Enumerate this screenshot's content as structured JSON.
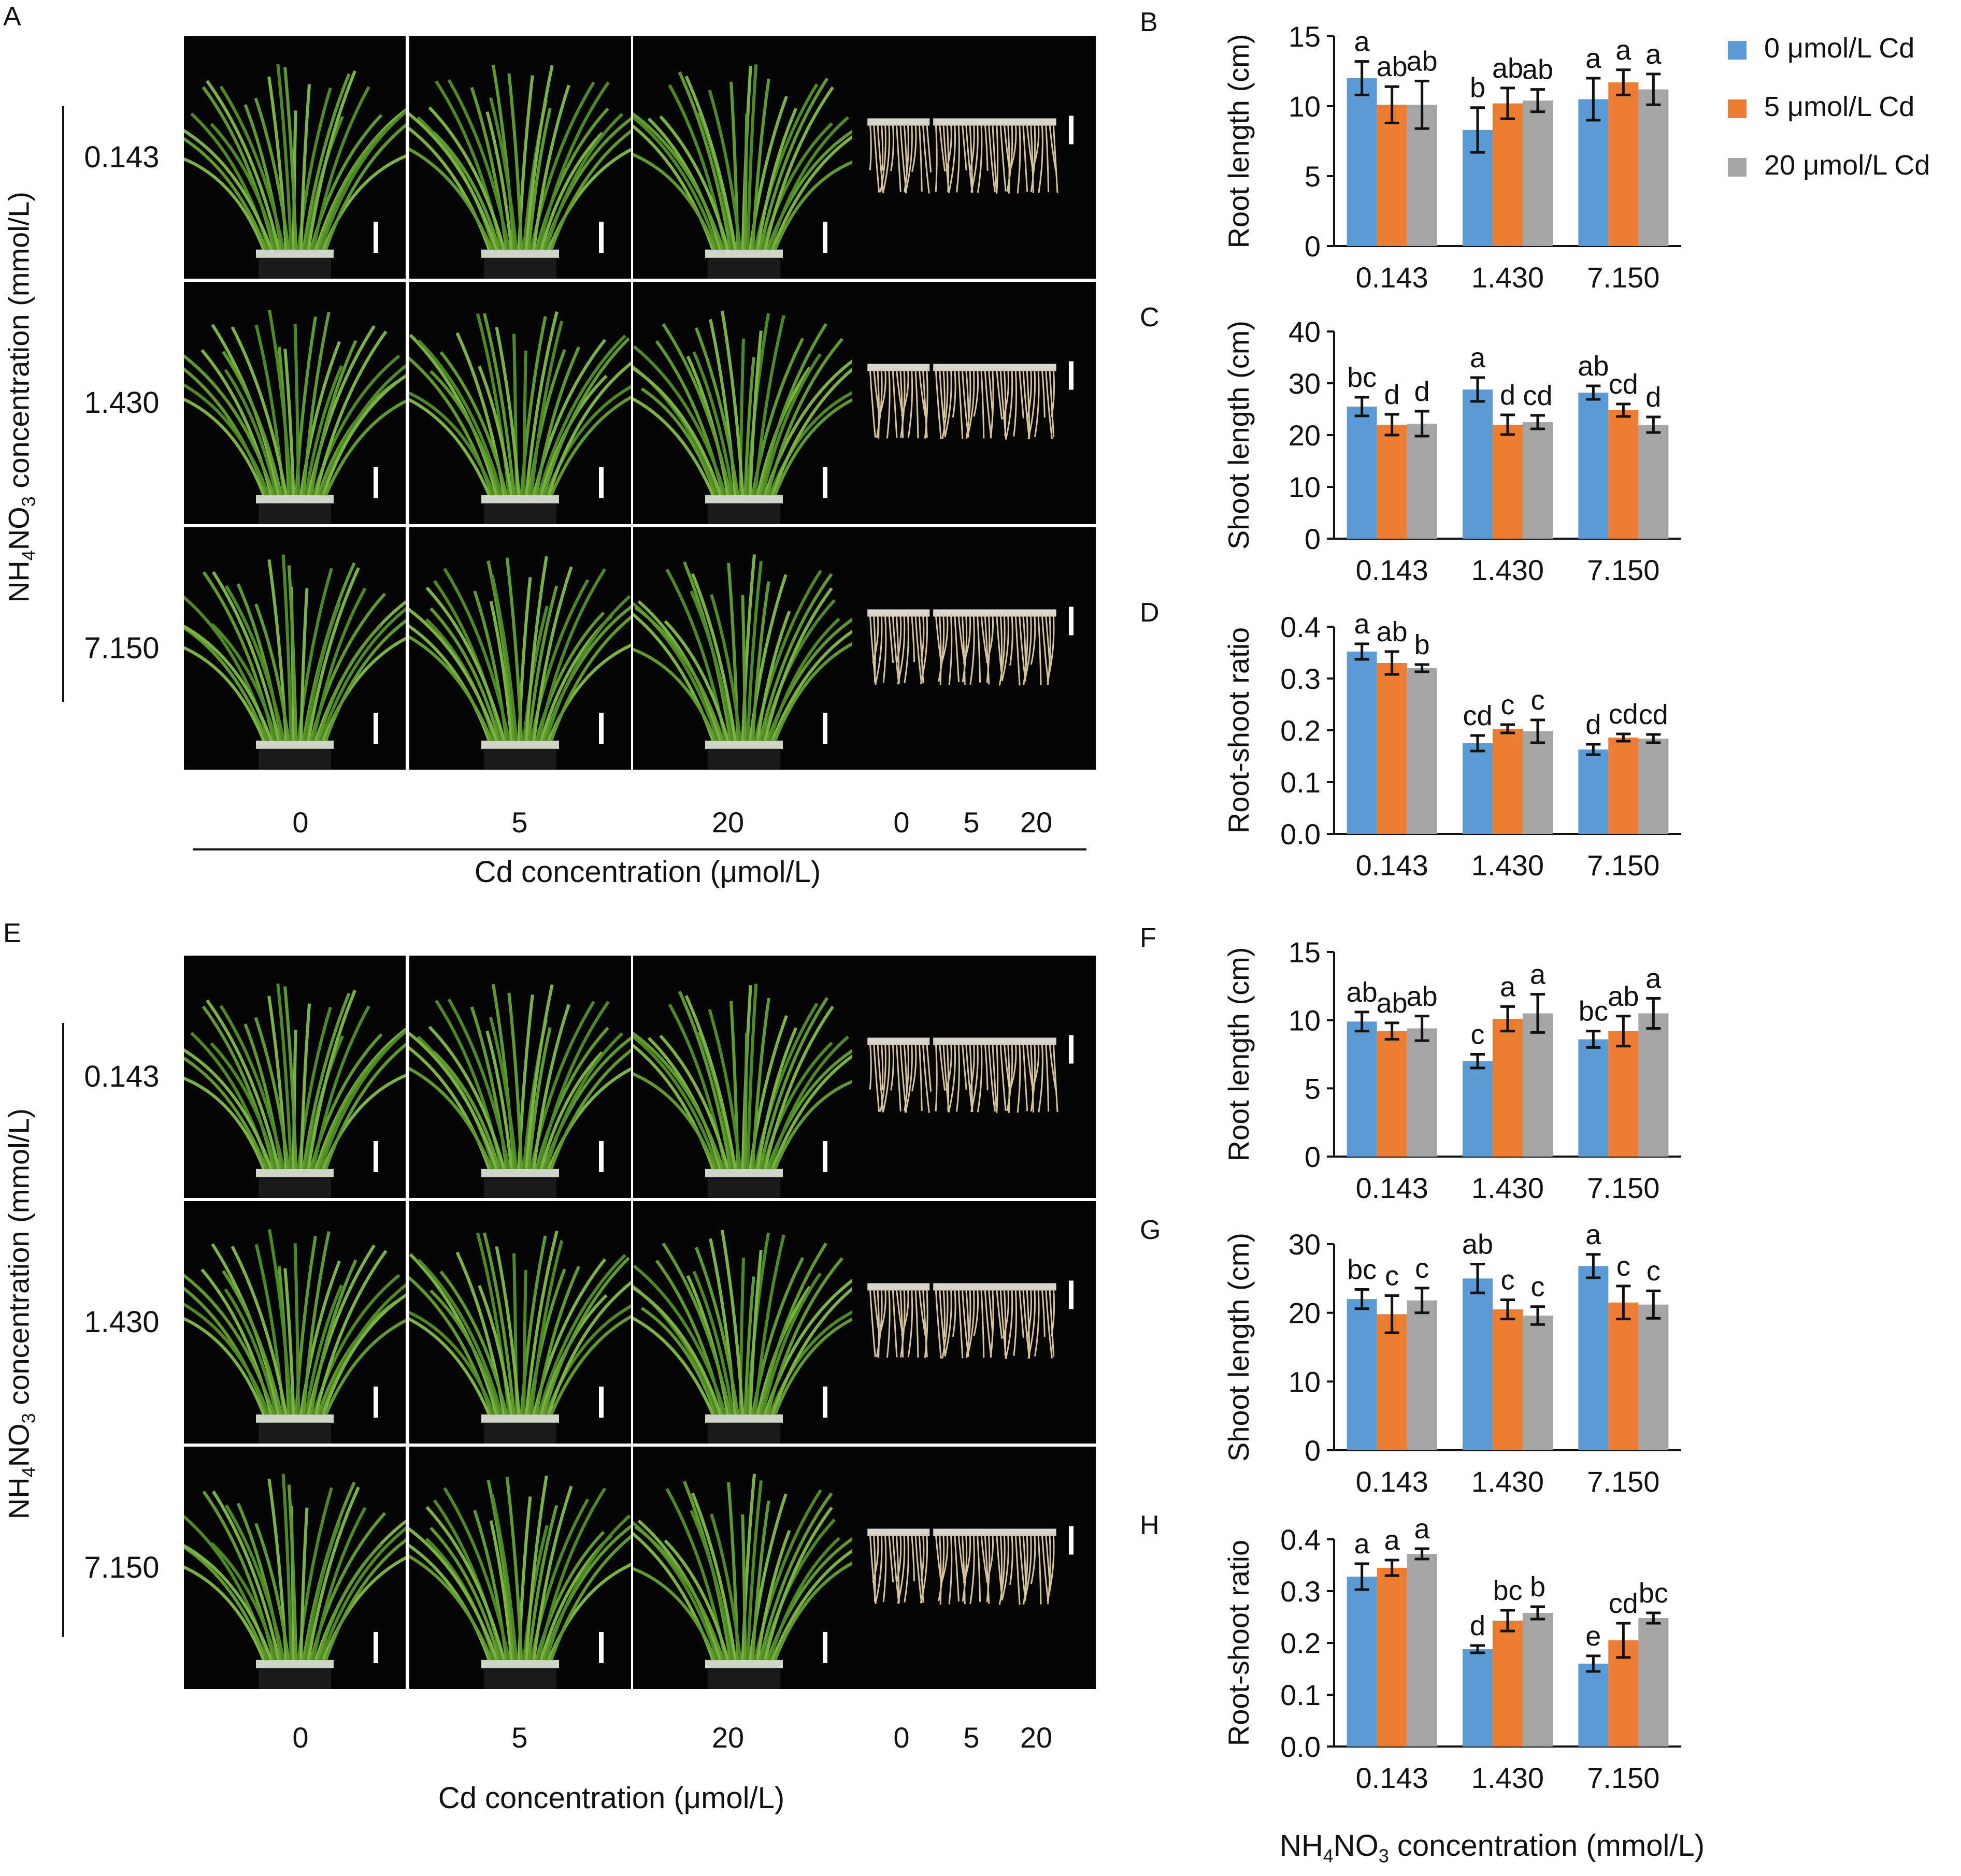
{
  "panel_letters": {
    "A": "A",
    "B": "B",
    "C": "C",
    "D": "D",
    "E": "E",
    "F": "F",
    "G": "G",
    "H": "H"
  },
  "colors": {
    "s0": "#5B9BD5",
    "s5": "#ED7D31",
    "s20": "#A5A5A5",
    "photo_bg": "#050505",
    "shoot": "#5f9a2c",
    "root": "#d8c49a"
  },
  "photo_panels": {
    "row_labels": [
      "0.143",
      "1.430",
      "7.150"
    ],
    "cd_shoot_labels": [
      "0",
      "5",
      "20"
    ],
    "cd_root_labels": [
      "0",
      "5",
      "20"
    ],
    "left_axis_title_main": "NH",
    "left_axis_title_sub4": "4",
    "left_axis_title_mid": "NO",
    "left_axis_title_sub3": "3",
    "left_axis_title_rest": " concentration (mmol/L)",
    "bottom_title": "Cd concentration (μmol/L)"
  },
  "legend": [
    "0 μmol/L Cd",
    "5 μmol/L Cd",
    "20 μmol/L Cd"
  ],
  "bottom_axis_title": {
    "main": "NH",
    "sub4": "4",
    "mid": "NO",
    "sub3": "3",
    "rest": " concentration (mmol/L)"
  },
  "chart_data": [
    {
      "panel": "B",
      "type": "bar",
      "ylabel": "Root length (cm)",
      "ylim": [
        0,
        15
      ],
      "yticks": [
        "0",
        "5",
        "10",
        "15"
      ],
      "categories": [
        "0.143",
        "1.430",
        "7.150"
      ],
      "series": [
        {
          "name": "0 μmol/L Cd",
          "values": [
            12.0,
            8.3,
            10.5
          ],
          "err": [
            1.2,
            1.6,
            1.5
          ],
          "letters": [
            "a",
            "b",
            "a"
          ]
        },
        {
          "name": "5 μmol/L Cd",
          "values": [
            10.1,
            10.2,
            11.7
          ],
          "err": [
            1.3,
            1.1,
            0.9
          ],
          "letters": [
            "ab",
            "ab",
            "a"
          ]
        },
        {
          "name": "20 μmol/L Cd",
          "values": [
            10.1,
            10.4,
            11.2
          ],
          "err": [
            1.7,
            0.8,
            1.1
          ],
          "letters": [
            "ab",
            "ab",
            "a"
          ]
        }
      ]
    },
    {
      "panel": "C",
      "type": "bar",
      "ylabel": "Shoot length (cm)",
      "ylim": [
        0,
        40
      ],
      "yticks": [
        "0",
        "10",
        "20",
        "30",
        "40"
      ],
      "categories": [
        "0.143",
        "1.430",
        "7.150"
      ],
      "series": [
        {
          "name": "0 μmol/L Cd",
          "values": [
            25.5,
            28.8,
            28.2
          ],
          "err": [
            1.8,
            2.3,
            1.3
          ],
          "letters": [
            "bc",
            "a",
            "ab"
          ]
        },
        {
          "name": "5 μmol/L Cd",
          "values": [
            22.0,
            22.0,
            24.8
          ],
          "err": [
            2.0,
            1.9,
            1.2
          ],
          "letters": [
            "d",
            "d",
            "cd"
          ]
        },
        {
          "name": "20 μmol/L Cd",
          "values": [
            22.2,
            22.5,
            22.0
          ],
          "err": [
            2.4,
            1.3,
            1.5
          ],
          "letters": [
            "d",
            "cd",
            "d"
          ]
        }
      ]
    },
    {
      "panel": "D",
      "type": "bar",
      "ylabel": "Root-shoot ratio",
      "ylim": [
        0,
        0.4
      ],
      "yticks": [
        "0.0",
        "0.1",
        "0.2",
        "0.3",
        "0.4"
      ],
      "categories": [
        "0.143",
        "1.430",
        "7.150"
      ],
      "series": [
        {
          "name": "0 μmol/L Cd",
          "values": [
            0.352,
            0.175,
            0.163
          ],
          "err": [
            0.015,
            0.015,
            0.01
          ],
          "letters": [
            "a",
            "cd",
            "d"
          ]
        },
        {
          "name": "5 μmol/L Cd",
          "values": [
            0.33,
            0.203,
            0.186
          ],
          "err": [
            0.022,
            0.008,
            0.007
          ],
          "letters": [
            "ab",
            "c",
            "cd"
          ]
        },
        {
          "name": "20 μmol/L Cd",
          "values": [
            0.32,
            0.198,
            0.184
          ],
          "err": [
            0.007,
            0.022,
            0.008
          ],
          "letters": [
            "b",
            "c",
            "cd"
          ]
        }
      ]
    },
    {
      "panel": "F",
      "type": "bar",
      "ylabel": "Root length (cm)",
      "ylim": [
        0,
        15
      ],
      "yticks": [
        "0",
        "5",
        "10",
        "15"
      ],
      "categories": [
        "0.143",
        "1.430",
        "7.150"
      ],
      "series": [
        {
          "name": "0 μmol/L Cd",
          "values": [
            9.9,
            7.0,
            8.6
          ],
          "err": [
            0.7,
            0.5,
            0.6
          ],
          "letters": [
            "ab",
            "c",
            "bc"
          ]
        },
        {
          "name": "5 μmol/L Cd",
          "values": [
            9.2,
            10.1,
            9.2
          ],
          "err": [
            0.6,
            0.9,
            1.1
          ],
          "letters": [
            "ab",
            "a",
            "ab"
          ]
        },
        {
          "name": "20 μmol/L Cd",
          "values": [
            9.4,
            10.5,
            10.5
          ],
          "err": [
            0.9,
            1.4,
            1.1
          ],
          "letters": [
            "ab",
            "a",
            "a"
          ]
        }
      ]
    },
    {
      "panel": "G",
      "type": "bar",
      "ylabel": "Shoot length (cm)",
      "ylim": [
        0,
        30
      ],
      "yticks": [
        "0",
        "10",
        "20",
        "30"
      ],
      "categories": [
        "0.143",
        "1.430",
        "7.150"
      ],
      "series": [
        {
          "name": "0 μmol/L Cd",
          "values": [
            22.0,
            25.0,
            26.8
          ],
          "err": [
            1.4,
            2.1,
            1.7
          ],
          "letters": [
            "bc",
            "ab",
            "a"
          ]
        },
        {
          "name": "5 μmol/L Cd",
          "values": [
            19.8,
            20.5,
            21.5
          ],
          "err": [
            2.7,
            1.4,
            2.4
          ],
          "letters": [
            "c",
            "c",
            "c"
          ]
        },
        {
          "name": "20 μmol/L Cd",
          "values": [
            21.8,
            19.6,
            21.2
          ],
          "err": [
            1.8,
            1.3,
            2.0
          ],
          "letters": [
            "c",
            "c",
            "c"
          ]
        }
      ]
    },
    {
      "panel": "H",
      "type": "bar",
      "ylabel": "Root-shoot ratio",
      "ylim": [
        0,
        0.4
      ],
      "yticks": [
        "0.0",
        "0.1",
        "0.2",
        "0.3",
        "0.4"
      ],
      "categories": [
        "0.143",
        "1.430",
        "7.150"
      ],
      "series": [
        {
          "name": "0 μmol/L Cd",
          "values": [
            0.328,
            0.188,
            0.16
          ],
          "err": [
            0.025,
            0.007,
            0.015
          ],
          "letters": [
            "a",
            "d",
            "e"
          ]
        },
        {
          "name": "5 μmol/L Cd",
          "values": [
            0.345,
            0.243,
            0.205
          ],
          "err": [
            0.015,
            0.02,
            0.033
          ],
          "letters": [
            "a",
            "bc",
            "cd"
          ]
        },
        {
          "name": "20 μmol/L Cd",
          "values": [
            0.372,
            0.258,
            0.248
          ],
          "err": [
            0.01,
            0.012,
            0.01
          ],
          "letters": [
            "a",
            "b",
            "bc"
          ]
        }
      ]
    }
  ]
}
